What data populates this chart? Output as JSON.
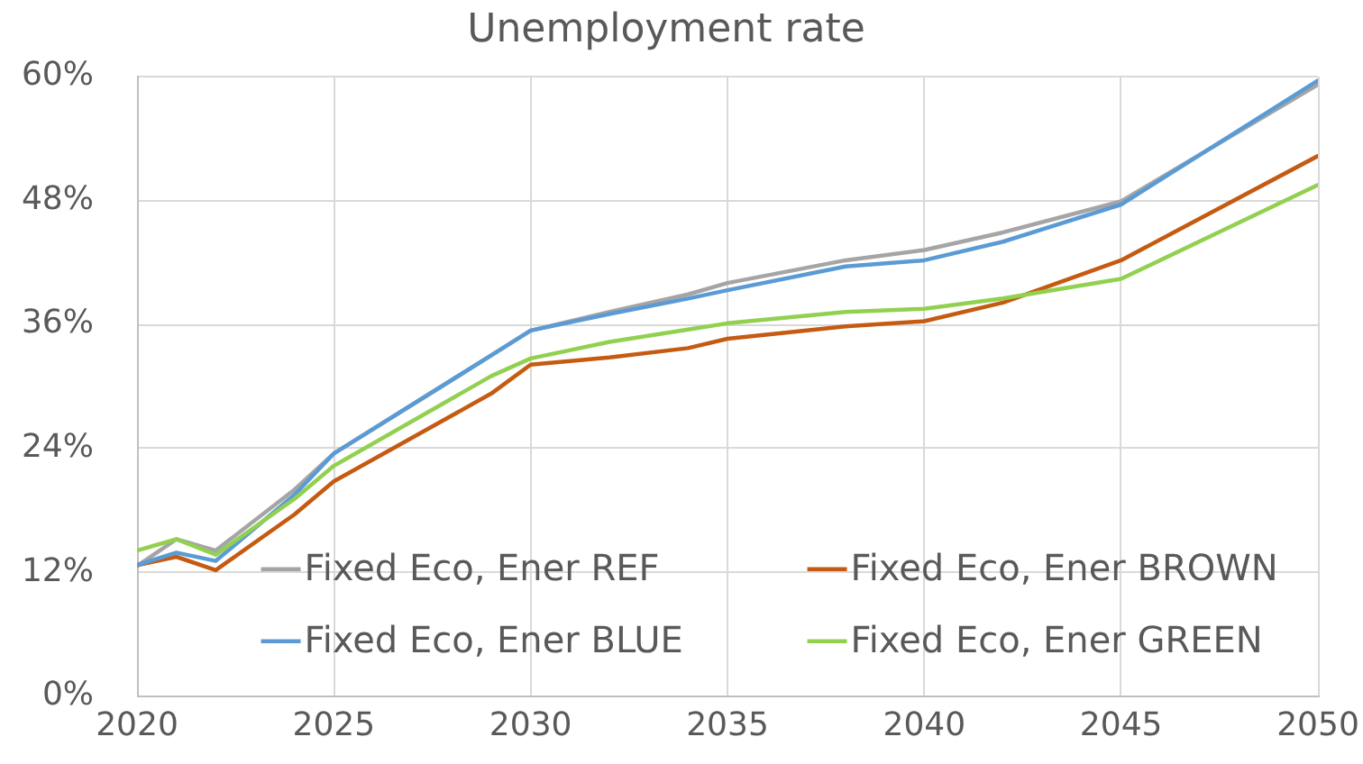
{
  "chart_data": {
    "type": "line",
    "title": "Unemployment rate",
    "x": [
      2020,
      2021,
      2022,
      2024,
      2025,
      2029,
      2030,
      2032,
      2034,
      2035,
      2038,
      2040,
      2042,
      2045,
      2050
    ],
    "series": [
      {
        "name": "Fixed Eco, Ener REF",
        "color": "#a5a5a5",
        "values": [
          12.6,
          15.2,
          14.1,
          20.0,
          23.5,
          33.0,
          35.4,
          37.2,
          38.9,
          40.0,
          42.2,
          43.2,
          44.9,
          47.9,
          59.2
        ]
      },
      {
        "name": "Fixed Eco, Ener BROWN",
        "color": "#c55a11",
        "values": [
          12.7,
          13.5,
          12.2,
          17.6,
          20.8,
          29.3,
          32.1,
          32.8,
          33.7,
          34.6,
          35.8,
          36.3,
          38.1,
          42.2,
          52.3
        ]
      },
      {
        "name": "Fixed Eco, Ener BLUE",
        "color": "#5b9bd5",
        "values": [
          12.7,
          13.9,
          13.1,
          19.5,
          23.5,
          33.0,
          35.4,
          37.0,
          38.5,
          39.3,
          41.6,
          42.2,
          44.0,
          47.6,
          59.6
        ]
      },
      {
        "name": "Fixed Eco, Ener GREEN",
        "color": "#92d050",
        "values": [
          14.1,
          15.2,
          13.7,
          19.1,
          22.3,
          31.0,
          32.7,
          34.3,
          35.5,
          36.1,
          37.2,
          37.5,
          38.5,
          40.4,
          49.5
        ]
      }
    ],
    "xlim": [
      2020,
      2050
    ],
    "xticks": [
      2020,
      2025,
      2030,
      2035,
      2040,
      2045,
      2050
    ],
    "ylim": [
      0,
      60
    ],
    "yticks": [
      {
        "value": 0,
        "label": "0%"
      },
      {
        "value": 12,
        "label": "12%"
      },
      {
        "value": 24,
        "label": "24%"
      },
      {
        "value": 36,
        "label": "36%"
      },
      {
        "value": 48,
        "label": "48%"
      },
      {
        "value": 60,
        "label": "60%"
      }
    ],
    "grid": true,
    "legend": "bottom"
  }
}
